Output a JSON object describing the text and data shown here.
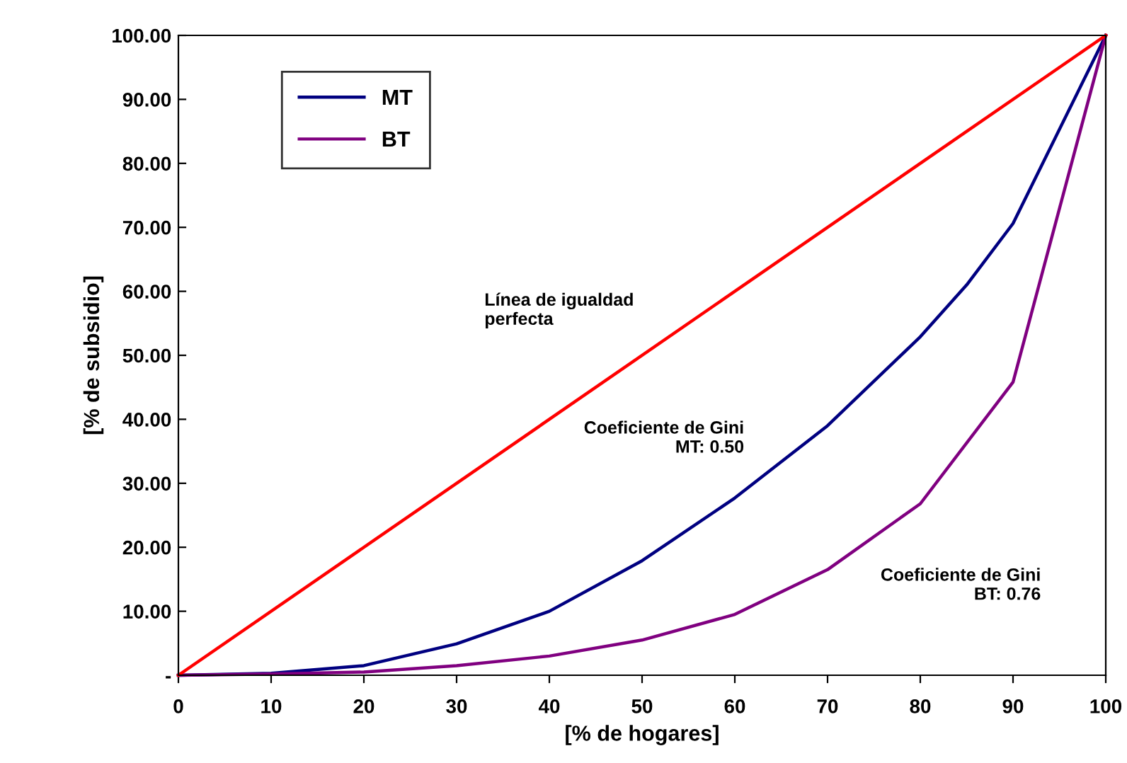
{
  "chart_data": {
    "type": "line",
    "xlabel": "[% de hogares]",
    "ylabel": "[% de subsidio]",
    "xlim": [
      0,
      100
    ],
    "xticks": [
      0,
      10,
      20,
      30,
      40,
      50,
      60,
      70,
      80,
      90,
      100
    ],
    "ylim": [
      0,
      100
    ],
    "yticks": [
      {
        "value": 0,
        "label": "-"
      },
      {
        "value": 10,
        "label": "10.00"
      },
      {
        "value": 20,
        "label": "20.00"
      },
      {
        "value": 30,
        "label": "30.00"
      },
      {
        "value": 40,
        "label": "40.00"
      },
      {
        "value": 50,
        "label": "50.00"
      },
      {
        "value": 60,
        "label": "60.00"
      },
      {
        "value": 70,
        "label": "70.00"
      },
      {
        "value": 80,
        "label": "80.00"
      },
      {
        "value": 90,
        "label": "90.00"
      },
      {
        "value": 100,
        "label": "100.00"
      }
    ],
    "grid": false,
    "legend": "top left",
    "marker": "none",
    "line_style": "solid",
    "series": [
      {
        "name": "MT",
        "color": "#000080",
        "x": [
          0,
          10,
          20,
          30,
          40,
          50,
          60,
          70,
          80,
          85,
          90,
          100
        ],
        "values": [
          0,
          0.3,
          1.5,
          4.9,
          10,
          17.9,
          27.7,
          39,
          52.9,
          61,
          70.6,
          100
        ]
      },
      {
        "name": "BT",
        "color": "#800080",
        "x": [
          0,
          10,
          20,
          30,
          40,
          50,
          60,
          70,
          80,
          90,
          100
        ],
        "values": [
          0,
          0.2,
          0.5,
          1.5,
          3,
          5.5,
          9.5,
          16.5,
          26.8,
          45.8,
          100
        ]
      },
      {
        "color": "#ff0000",
        "x": [
          0,
          100
        ],
        "values": [
          0,
          100
        ]
      }
    ],
    "annotations": [
      "Línea de igualdad\nperfecta",
      "Coeficiente de Gini\nMT: 0.50",
      "Coeficiente de Gini\nBT: 0.76"
    ]
  }
}
